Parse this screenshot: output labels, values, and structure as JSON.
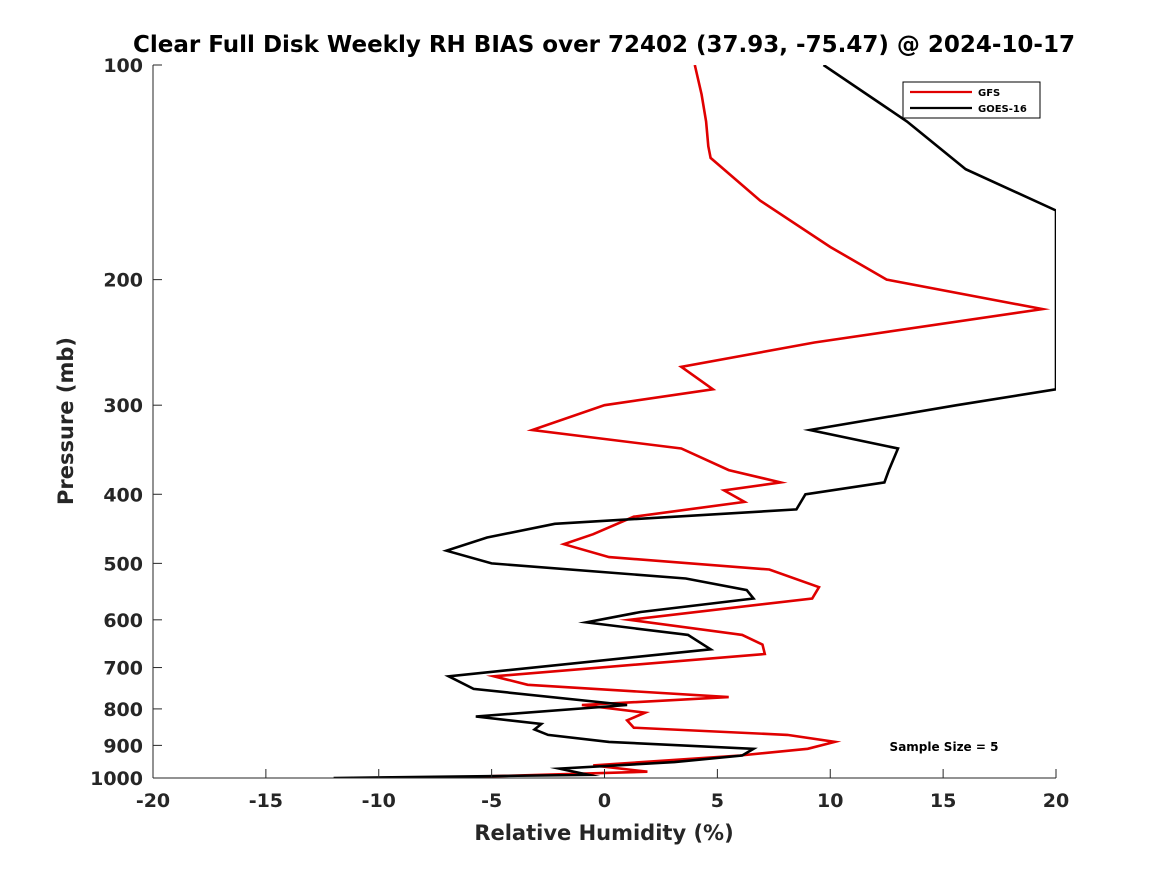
{
  "chart_data": {
    "type": "line",
    "title": "Clear Full Disk Weekly RH BIAS over 72402 (37.93, -75.47) @ 2024-10-17",
    "xlabel": "Relative Humidity (%)",
    "ylabel": "Pressure (mb)",
    "xlim": [
      -20,
      20
    ],
    "ylim": [
      100,
      1000
    ],
    "y_scale": "log-reversed",
    "x_ticks": [
      -20,
      -15,
      -10,
      -5,
      0,
      5,
      10,
      15,
      20
    ],
    "x_tick_labels": [
      "-20",
      "-15",
      "-10",
      "-5",
      "0",
      "5",
      "10",
      "15",
      "20"
    ],
    "y_ticks": [
      100,
      200,
      300,
      400,
      500,
      600,
      700,
      800,
      900,
      1000
    ],
    "y_tick_labels": [
      "100",
      "200",
      "300",
      "400",
      "500",
      "600",
      "700",
      "800",
      "900",
      "1000"
    ],
    "grid": false,
    "legend_position": "top-right",
    "annotation": "Sample Size = 5",
    "series": [
      {
        "name": "GFS",
        "color": "#e00000",
        "x": [
          4.0,
          4.3,
          4.5,
          4.6,
          4.7,
          6.9,
          10.0,
          12.5,
          19.4,
          9.3,
          3.4,
          4.8,
          0.0,
          -3.2,
          3.4,
          5.5,
          7.8,
          5.3,
          6.2,
          1.3,
          -0.5,
          -1.8,
          0.2,
          7.3,
          9.5,
          9.2,
          1.1,
          6.1,
          7.0,
          7.1,
          -4.9,
          -3.4,
          5.5,
          -1.0,
          1.8,
          1.0,
          1.3,
          8.1,
          10.2,
          9.0,
          6.0,
          -0.5,
          1.9,
          -7.7
        ],
        "y": [
          100,
          110,
          120,
          130,
          135,
          155,
          180,
          200,
          220,
          245,
          265,
          285,
          300,
          325,
          345,
          370,
          385,
          395,
          410,
          430,
          455,
          470,
          490,
          510,
          540,
          560,
          600,
          630,
          650,
          670,
          720,
          740,
          770,
          790,
          810,
          830,
          850,
          870,
          890,
          910,
          930,
          960,
          980,
          1000
        ]
      },
      {
        "name": "GOES-16",
        "color": "#000000",
        "x": [
          9.7,
          13.4,
          16.0,
          20.0,
          20.0,
          15.6,
          9.1,
          13.0,
          12.6,
          12.4,
          8.9,
          8.7,
          8.5,
          -2.2,
          -5.2,
          -7.0,
          -5.0,
          3.6,
          6.3,
          6.6,
          1.6,
          -0.8,
          3.7,
          4.7,
          -6.9,
          -5.8,
          1.0,
          -5.7,
          -2.8,
          -3.1,
          -2.5,
          0.2,
          6.6,
          6.1,
          3.1,
          -2.0,
          -0.7,
          -12.0
        ],
        "y": [
          100,
          120,
          140,
          160,
          285,
          300,
          325,
          345,
          370,
          385,
          400,
          410,
          420,
          440,
          460,
          480,
          500,
          525,
          545,
          560,
          585,
          605,
          630,
          660,
          720,
          750,
          790,
          820,
          840,
          855,
          870,
          890,
          910,
          930,
          950,
          970,
          990,
          1000
        ]
      }
    ]
  }
}
